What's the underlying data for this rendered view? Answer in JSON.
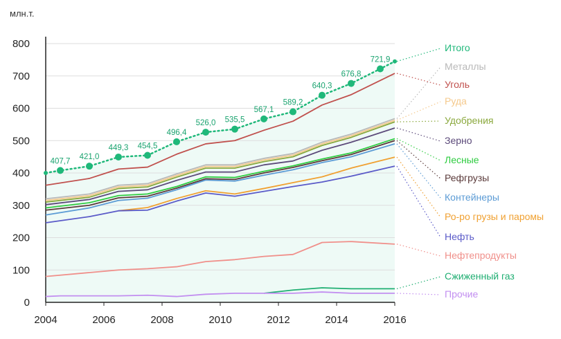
{
  "chart_data": {
    "type": "line",
    "title": "",
    "xlabel": "",
    "ylabel": "млн.т.",
    "xlim": [
      2004,
      2016
    ],
    "ylim": [
      0,
      800
    ],
    "x_ticks": [
      "2004",
      "2006",
      "2008",
      "2010",
      "2012",
      "2014",
      "2016"
    ],
    "y_ticks": [
      "0",
      "100",
      "200",
      "300",
      "400",
      "500",
      "600",
      "700",
      "800"
    ],
    "grid": "horizontal",
    "legend_placement": "right",
    "series": [
      {
        "name": "Итого",
        "color": "#1fb87a",
        "dashed": true,
        "markers": true,
        "x": [
          2004,
          2004.5,
          2005.5,
          2006.5,
          2007.5,
          2008.5,
          2009.5,
          2010.5,
          2011.5,
          2012.5,
          2013.5,
          2014.5,
          2015.5,
          2016
        ],
        "values": [
          400,
          407.7,
          421.0,
          449.3,
          454.5,
          496.4,
          526.0,
          535.5,
          567.1,
          589.2,
          640.3,
          676.8,
          721.9,
          745
        ],
        "labels": [
          "",
          "407,7",
          "421,0",
          "449,3",
          "454,5",
          "496,4",
          "526,0",
          "535,5",
          "567,1",
          "589,2",
          "640,3",
          "676,8",
          "721,9",
          ""
        ]
      },
      {
        "name": "Металлы",
        "color": "#b8b8b8",
        "x": [
          2004,
          2005.5,
          2006.5,
          2007.5,
          2008.5,
          2009.5,
          2010.5,
          2011.5,
          2012.5,
          2013.5,
          2014.5,
          2016
        ],
        "values": [
          320,
          335,
          362,
          367,
          397,
          425,
          425,
          445,
          460,
          495,
          520,
          568
        ]
      },
      {
        "name": "Уголь",
        "color": "#c0504d",
        "x": [
          2004,
          2005.5,
          2006.5,
          2007.5,
          2008.5,
          2009.5,
          2010.5,
          2011.5,
          2012.5,
          2013.5,
          2014.5,
          2016
        ],
        "values": [
          362,
          383,
          412,
          418,
          458,
          490,
          500,
          532,
          560,
          610,
          642,
          708
        ]
      },
      {
        "name": "Руда",
        "color": "#f5c98c",
        "x": [
          2004,
          2005.5,
          2006.5,
          2007.5,
          2008.5,
          2009.5,
          2010.5,
          2011.5,
          2012.5,
          2013.5,
          2014.5,
          2016
        ],
        "values": [
          315,
          330,
          357,
          362,
          392,
          420,
          420,
          440,
          455,
          490,
          515,
          563
        ]
      },
      {
        "name": "Удобрения",
        "color": "#8aa83c",
        "x": [
          2004,
          2005.5,
          2006.5,
          2007.5,
          2008.5,
          2009.5,
          2010.5,
          2011.5,
          2012.5,
          2013.5,
          2014.5,
          2016
        ],
        "values": [
          310,
          325,
          352,
          357,
          387,
          415,
          415,
          435,
          450,
          485,
          510,
          558
        ]
      },
      {
        "name": "Зерно",
        "color": "#5c4a7a",
        "x": [
          2004,
          2005.5,
          2006.5,
          2007.5,
          2008.5,
          2009.5,
          2010.5,
          2011.5,
          2012.5,
          2013.5,
          2014.5,
          2016
        ],
        "values": [
          302,
          318,
          343,
          348,
          377,
          403,
          403,
          425,
          437,
          470,
          495,
          539
        ]
      },
      {
        "name": "Лесные",
        "color": "#2ecc40",
        "x": [
          2004,
          2005.5,
          2006.5,
          2007.5,
          2008.5,
          2009.5,
          2010.5,
          2011.5,
          2012.5,
          2013.5,
          2014.5,
          2016
        ],
        "values": [
          292,
          308,
          330,
          335,
          358,
          388,
          386,
          405,
          422,
          443,
          462,
          506
        ]
      },
      {
        "name": "Рефгрузы",
        "color": "#5a3a3a",
        "x": [
          2004,
          2005.5,
          2006.5,
          2007.5,
          2008.5,
          2009.5,
          2010.5,
          2011.5,
          2012.5,
          2013.5,
          2014.5,
          2016
        ],
        "values": [
          285,
          300,
          323,
          328,
          353,
          382,
          380,
          400,
          417,
          438,
          457,
          500
        ]
      },
      {
        "name": "Контейнеры",
        "color": "#5b9bd5",
        "x": [
          2004,
          2005.5,
          2006.5,
          2007.5,
          2008.5,
          2009.5,
          2010.5,
          2011.5,
          2012.5,
          2013.5,
          2014.5,
          2016
        ],
        "values": [
          270,
          292,
          315,
          322,
          348,
          378,
          375,
          393,
          410,
          432,
          450,
          490
        ]
      },
      {
        "name": "Ро-ро грузы и паромы",
        "color": "#f0a030",
        "x": [
          2006.5,
          2007.5,
          2008.5,
          2009.5,
          2010.5,
          2011.5,
          2012.5,
          2013.5,
          2014.5,
          2016
        ],
        "values": [
          283,
          293,
          321,
          345,
          335,
          352,
          370,
          388,
          415,
          449
        ]
      },
      {
        "name": "Нефть",
        "color": "#5a5ac8",
        "x": [
          2004,
          2005.5,
          2006.5,
          2007.5,
          2008.5,
          2009.5,
          2010.5,
          2011.5,
          2012.5,
          2013.5,
          2014.5,
          2016
        ],
        "values": [
          246,
          265,
          283,
          285,
          313,
          338,
          328,
          343,
          358,
          372,
          390,
          421
        ]
      },
      {
        "name": "Нефтепродукты",
        "color": "#f08f8a",
        "x": [
          2004,
          2005.5,
          2006.5,
          2007.5,
          2008.5,
          2009.5,
          2010.5,
          2011.5,
          2012.5,
          2013.5,
          2014.5,
          2016
        ],
        "values": [
          80,
          92,
          100,
          104,
          110,
          126,
          132,
          142,
          148,
          185,
          188,
          180
        ]
      },
      {
        "name": "Сжиженный газ",
        "color": "#1fae72",
        "x": [
          2011.5,
          2012.5,
          2013.5,
          2014.5,
          2016
        ],
        "values": [
          28,
          38,
          45,
          42,
          42
        ]
      },
      {
        "name": "Прочие",
        "color": "#c28ef0",
        "x": [
          2004,
          2004.5,
          2005.5,
          2006.5,
          2007.5,
          2008.5,
          2009.5,
          2010.5,
          2011.5,
          2012.5,
          2013.5,
          2014.5,
          2016
        ],
        "values": [
          18,
          20,
          20,
          20,
          22,
          18,
          25,
          28,
          28,
          28,
          32,
          28,
          28
        ]
      }
    ]
  }
}
